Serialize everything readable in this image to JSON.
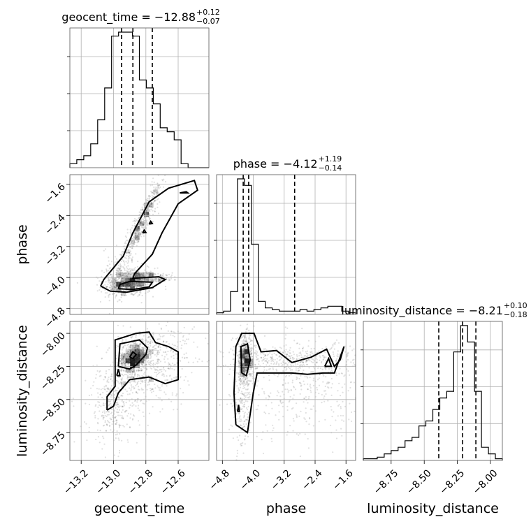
{
  "chart_data": {
    "type": "corner",
    "parameters": [
      "geocent_time",
      "phase",
      "luminosity_distance"
    ],
    "titles": [
      {
        "main": "geocent_time = −12.88",
        "upper": "+0.12",
        "lower": "−0.07"
      },
      {
        "main": "phase = −4.12",
        "upper": "+1.19",
        "lower": "−0.14"
      },
      {
        "main": "luminosity_distance = −8.21",
        "upper": "+0.10",
        "lower": "−0.18"
      }
    ],
    "axis_labels": {
      "x": [
        "geocent_time",
        "phase",
        "luminosity_distance"
      ],
      "y": [
        "phase",
        "luminosity_distance"
      ]
    },
    "ranges": {
      "geocent_time": [
        -13.27,
        -12.41
      ],
      "phase": [
        -4.95,
        -1.35
      ],
      "luminosity_distance": [
        -8.96,
        -7.91
      ]
    },
    "ticks": {
      "geocent_time": [
        -13.2,
        -13.0,
        -12.8,
        -12.6
      ],
      "phase": [
        -4.8,
        -4.0,
        -3.2,
        -2.4,
        -1.6
      ],
      "luminosity_distance": [
        -8.75,
        -8.5,
        -8.25,
        -8.0
      ]
    },
    "tick_labels": {
      "geocent_time": [
        "−13.2",
        "−13.0",
        "−12.8",
        "−12.6"
      ],
      "phase": [
        "−4.8",
        "−4.0",
        "−3.2",
        "−2.4",
        "−1.6"
      ],
      "luminosity_distance": [
        "−8.75",
        "−8.50",
        "−8.25",
        "−8.00"
      ]
    },
    "quantiles": {
      "geocent_time": [
        -12.95,
        -12.88,
        -12.76
      ],
      "phase": [
        -4.26,
        -4.12,
        -2.93
      ],
      "luminosity_distance": [
        -8.39,
        -8.21,
        -8.11
      ]
    },
    "histograms": {
      "geocent_time": {
        "edges": [
          -13.27,
          -13.227,
          -13.184,
          -13.141,
          -13.098,
          -13.055,
          -13.012,
          -12.969,
          -12.926,
          -12.883,
          -12.84,
          -12.797,
          -12.754,
          -12.711,
          -12.668,
          -12.625,
          -12.582,
          -12.539,
          -12.496,
          -12.453,
          -12.41
        ],
        "counts": [
          1,
          2,
          3,
          6,
          12,
          20,
          33,
          34,
          34,
          33,
          22,
          20,
          16,
          10,
          9,
          7,
          1,
          0,
          0,
          0
        ]
      },
      "phase": {
        "edges": [
          -4.95,
          -4.77,
          -4.59,
          -4.41,
          -4.23,
          -4.05,
          -3.87,
          -3.69,
          -3.51,
          -3.33,
          -3.15,
          -2.97,
          -2.79,
          -2.61,
          -2.43,
          -2.25,
          -2.07,
          -1.89,
          -1.71,
          -1.53,
          -1.35
        ],
        "counts": [
          1,
          2,
          14,
          83,
          79,
          43,
          8,
          4,
          3,
          2,
          2,
          2,
          3,
          2,
          3,
          4,
          5,
          5,
          2,
          1
        ]
      },
      "luminosity_distance": {
        "edges": [
          -8.96,
          -8.9075,
          -8.855,
          -8.8025,
          -8.75,
          -8.6975,
          -8.645,
          -8.5925,
          -8.54,
          -8.4875,
          -8.435,
          -8.3825,
          -8.33,
          -8.2775,
          -8.225,
          -8.1725,
          -8.12,
          -8.0675,
          -8.015,
          -7.9625,
          -7.91
        ],
        "counts": [
          1,
          1,
          2,
          4,
          6,
          8,
          12,
          14,
          21,
          24,
          31,
          38,
          42,
          66,
          82,
          72,
          42,
          8,
          4,
          1
        ]
      }
    },
    "samples_2d": [
      {
        "x": "geocent_time",
        "y": "phase",
        "clusters": [
          {
            "cx": -12.9,
            "cy": -4.15,
            "sx": 0.08,
            "sy": 0.18,
            "rho": 0.1,
            "n": 500
          },
          {
            "cx": -12.95,
            "cy": -3.8,
            "sx": 0.06,
            "sy": 0.3,
            "rho": 0.0,
            "n": 120
          },
          {
            "cx": -12.83,
            "cy": -2.6,
            "sx": 0.08,
            "sy": 0.7,
            "rho": 0.95,
            "n": 450
          },
          {
            "cx": -12.75,
            "cy": -4.0,
            "sx": 0.08,
            "sy": 0.06,
            "rho": 0.0,
            "n": 120
          }
        ]
      },
      {
        "x": "geocent_time",
        "y": "luminosity_distance",
        "clusters": [
          {
            "cx": -12.87,
            "cy": -8.18,
            "sx": 0.05,
            "sy": 0.07,
            "rho": 0.2,
            "n": 450
          },
          {
            "cx": -12.8,
            "cy": -8.25,
            "sx": 0.15,
            "sy": 0.17,
            "rho": 0.4,
            "n": 650
          },
          {
            "cx": -13.0,
            "cy": -8.58,
            "sx": 0.08,
            "sy": 0.14,
            "rho": 0.0,
            "n": 250
          }
        ]
      },
      {
        "x": "phase",
        "y": "luminosity_distance",
        "clusters": [
          {
            "cx": -4.2,
            "cy": -8.2,
            "sx": 0.12,
            "sy": 0.09,
            "rho": 0.0,
            "n": 450
          },
          {
            "cx": -4.3,
            "cy": -8.5,
            "sx": 0.12,
            "sy": 0.2,
            "rho": 0.0,
            "n": 220
          },
          {
            "cx": -2.9,
            "cy": -8.2,
            "sx": 0.9,
            "sy": 0.06,
            "rho": 0.0,
            "n": 450
          },
          {
            "cx": -2.6,
            "cy": -8.45,
            "sx": 0.9,
            "sy": 0.18,
            "rho": 0.0,
            "n": 350
          }
        ]
      }
    ],
    "contours": [
      {
        "x": "geocent_time",
        "y": "phase",
        "levels": [
          {
            "name": "outer",
            "points": [
              [
                -13.08,
                -4.22
              ],
              [
                -13.02,
                -4.35
              ],
              [
                -12.92,
                -4.38
              ],
              [
                -12.76,
                -4.26
              ],
              [
                -12.68,
                -4.05
              ],
              [
                -12.72,
                -3.98
              ],
              [
                -12.88,
                -4.02
              ],
              [
                -12.87,
                -3.9
              ],
              [
                -12.76,
                -3.4
              ],
              [
                -12.7,
                -2.85
              ],
              [
                -12.6,
                -2.1
              ],
              [
                -12.48,
                -1.75
              ],
              [
                -12.5,
                -1.5
              ],
              [
                -12.66,
                -1.7
              ],
              [
                -12.78,
                -2.05
              ],
              [
                -12.88,
                -2.85
              ],
              [
                -12.94,
                -3.45
              ],
              [
                -13.02,
                -3.85
              ],
              [
                -13.06,
                -4.05
              ],
              [
                -13.08,
                -4.22
              ]
            ]
          },
          {
            "name": "inner",
            "points": [
              [
                -12.97,
                -4.29
              ],
              [
                -12.88,
                -4.31
              ],
              [
                -12.78,
                -4.24
              ],
              [
                -12.76,
                -4.12
              ],
              [
                -12.9,
                -4.1
              ],
              [
                -12.96,
                -4.18
              ],
              [
                -12.97,
                -4.29
              ]
            ]
          },
          {
            "name": "ridge-1",
            "points": [
              [
                -12.82,
                -2.85
              ],
              [
                -12.81,
                -2.78
              ],
              [
                -12.8,
                -2.84
              ],
              [
                -12.82,
                -2.85
              ]
            ]
          },
          {
            "name": "ridge-2",
            "points": [
              [
                -12.78,
                -2.62
              ],
              [
                -12.77,
                -2.55
              ],
              [
                -12.76,
                -2.61
              ],
              [
                -12.78,
                -2.62
              ]
            ]
          },
          {
            "name": "ridge-3",
            "points": [
              [
                -12.59,
                -1.82
              ],
              [
                -12.55,
                -1.79
              ],
              [
                -12.54,
                -1.82
              ],
              [
                -12.59,
                -1.82
              ]
            ]
          }
        ]
      },
      {
        "x": "geocent_time",
        "y": "luminosity_distance",
        "levels": [
          {
            "name": "outer",
            "points": [
              [
                -13.04,
                -8.58
              ],
              [
                -13.04,
                -8.48
              ],
              [
                -12.99,
                -8.4
              ],
              [
                -12.99,
                -8.05
              ],
              [
                -12.86,
                -8.0
              ],
              [
                -12.78,
                -7.99
              ],
              [
                -12.74,
                -8.07
              ],
              [
                -12.66,
                -8.1
              ],
              [
                -12.6,
                -8.14
              ],
              [
                -12.6,
                -8.35
              ],
              [
                -12.68,
                -8.38
              ],
              [
                -12.78,
                -8.33
              ],
              [
                -12.9,
                -8.35
              ],
              [
                -12.97,
                -8.45
              ],
              [
                -13.0,
                -8.55
              ],
              [
                -13.04,
                -8.58
              ]
            ]
          },
          {
            "name": "middle",
            "points": [
              [
                -12.97,
                -8.25
              ],
              [
                -12.96,
                -8.08
              ],
              [
                -12.84,
                -8.05
              ],
              [
                -12.79,
                -8.11
              ],
              [
                -12.8,
                -8.16
              ],
              [
                -12.86,
                -8.24
              ],
              [
                -12.9,
                -8.27
              ],
              [
                -12.97,
                -8.25
              ]
            ]
          },
          {
            "name": "inner",
            "points": [
              [
                -12.9,
                -8.18
              ],
              [
                -12.88,
                -8.14
              ],
              [
                -12.86,
                -8.16
              ],
              [
                -12.88,
                -8.19
              ],
              [
                -12.9,
                -8.18
              ]
            ]
          },
          {
            "name": "island",
            "points": [
              [
                -12.98,
                -8.32
              ],
              [
                -12.97,
                -8.27
              ],
              [
                -12.96,
                -8.32
              ],
              [
                -12.98,
                -8.32
              ]
            ]
          }
        ]
      },
      {
        "x": "phase",
        "y": "luminosity_distance",
        "levels": [
          {
            "name": "outer",
            "points": [
              [
                -4.45,
                -8.69
              ],
              [
                -4.5,
                -8.45
              ],
              [
                -4.45,
                -8.1
              ],
              [
                -4.3,
                -8.0
              ],
              [
                -3.98,
                -8.0
              ],
              [
                -3.8,
                -8.14
              ],
              [
                -3.4,
                -8.13
              ],
              [
                -3.0,
                -8.22
              ],
              [
                -2.5,
                -8.18
              ],
              [
                -2.1,
                -8.12
              ],
              [
                -1.9,
                -8.25
              ],
              [
                -1.75,
                -8.2
              ],
              [
                -1.65,
                -8.1
              ],
              [
                -1.9,
                -8.3
              ],
              [
                -2.2,
                -8.3
              ],
              [
                -2.6,
                -8.31
              ],
              [
                -3.0,
                -8.3
              ],
              [
                -3.5,
                -8.3
              ],
              [
                -3.9,
                -8.3
              ],
              [
                -4.0,
                -8.45
              ],
              [
                -4.15,
                -8.75
              ],
              [
                -4.45,
                -8.69
              ]
            ]
          },
          {
            "name": "inner",
            "points": [
              [
                -4.3,
                -8.3
              ],
              [
                -4.32,
                -8.1
              ],
              [
                -4.15,
                -8.08
              ],
              [
                -4.08,
                -8.2
              ],
              [
                -4.18,
                -8.32
              ],
              [
                -4.3,
                -8.3
              ]
            ]
          },
          {
            "name": "island-1",
            "points": [
              [
                -4.41,
                -8.59
              ],
              [
                -4.38,
                -8.54
              ],
              [
                -4.36,
                -8.59
              ],
              [
                -4.41,
                -8.59
              ]
            ]
          },
          {
            "name": "island-2",
            "points": [
              [
                -2.15,
                -8.25
              ],
              [
                -2.05,
                -8.19
              ],
              [
                -1.98,
                -8.25
              ],
              [
                -2.15,
                -8.25
              ]
            ]
          }
        ]
      }
    ]
  }
}
